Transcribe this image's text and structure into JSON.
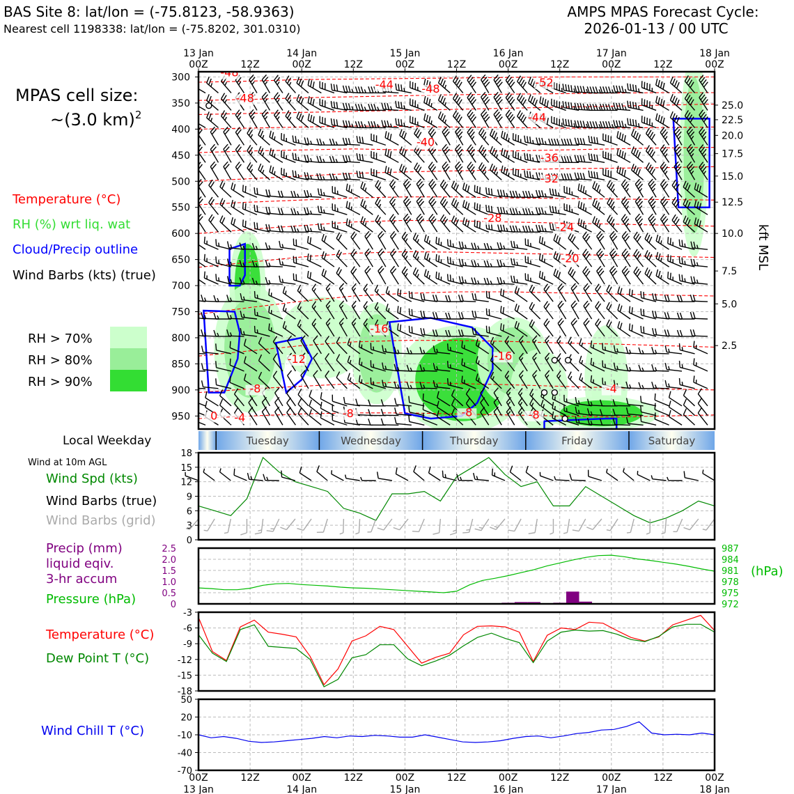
{
  "header": {
    "site_line": "BAS Site 8: lat/lon = (-75.8123, -58.9363)",
    "cell_line": "Nearest cell 1198338: lat/lon = (-75.8202, 301.0310)",
    "cycle_title": "AMPS MPAS Forecast Cycle:",
    "cycle_time": "2026-01-13 / 00 UTC"
  },
  "legend": {
    "cell_size_title": "MPAS cell size:",
    "cell_size_value": "~(3.0 km)",
    "cell_size_exp": "2",
    "temperature": "Temperature (°C)",
    "rh": "RH (%) wrt liq. wat",
    "cloud": "Cloud/Precip outline",
    "barbs": "Wind Barbs (kts) (true)",
    "rh70": "RH > 70%",
    "rh80": "RH > 80%",
    "rh90": "RH > 90%"
  },
  "colors": {
    "temperature": "#ff0000",
    "rh_label": "#33dd33",
    "cloud": "#0000ff",
    "rh70": "#ccffcc",
    "rh80": "#99ee99",
    "rh90": "#33dd33",
    "wind_speed": "#008800",
    "barbs_grid": "#aaaaaa",
    "precip": "#800080",
    "pressure": "#00bb00",
    "dewpoint": "#008800",
    "windchill": "#0000ee"
  },
  "time_axis": {
    "ticks": [
      "00Z",
      "12Z",
      "00Z",
      "12Z",
      "00Z",
      "12Z",
      "00Z",
      "12Z",
      "00Z",
      "12Z",
      "00Z"
    ],
    "dates": [
      "13 Jan",
      "14 Jan",
      "15 Jan",
      "16 Jan",
      "17 Jan",
      "18 Jan"
    ],
    "date_tick_indices": [
      0,
      2,
      4,
      6,
      8,
      10
    ]
  },
  "weekday": {
    "label": "Local Weekday",
    "days": [
      "Tuesday",
      "Wednesday",
      "Thursday",
      "Friday",
      "Saturday"
    ]
  },
  "chart_data": [
    {
      "type": "heatmap",
      "name": "profile",
      "y_ticks": [
        300,
        350,
        400,
        450,
        500,
        550,
        600,
        650,
        700,
        750,
        800,
        850,
        900,
        950
      ],
      "ylim": [
        975,
        290
      ],
      "right_axis_label": "kft MSL",
      "right_ticks": [
        {
          "label": "25.0",
          "p": 354
        },
        {
          "label": "22.5",
          "p": 382
        },
        {
          "label": "20.0",
          "p": 412
        },
        {
          "label": "17.5",
          "p": 447
        },
        {
          "label": "15.0",
          "p": 490
        },
        {
          "label": "12.5",
          "p": 540
        },
        {
          "label": "10.0",
          "p": 600
        },
        {
          "label": "7.5",
          "p": 672
        },
        {
          "label": "5.0",
          "p": 735
        },
        {
          "label": "2.5",
          "p": 815
        }
      ],
      "temp_labels": [
        {
          "t": 0.3,
          "p": 299,
          "text": "-48"
        },
        {
          "t": 0.45,
          "p": 348,
          "text": "-48"
        },
        {
          "t": 1.8,
          "p": 322,
          "text": "-44"
        },
        {
          "t": 2.25,
          "p": 330,
          "text": "-48"
        },
        {
          "t": 3.35,
          "p": 318,
          "text": "-52"
        },
        {
          "t": 3.28,
          "p": 385,
          "text": "-44"
        },
        {
          "t": 2.2,
          "p": 432,
          "text": "-40"
        },
        {
          "t": 3.4,
          "p": 462,
          "text": "-36"
        },
        {
          "t": 3.4,
          "p": 502,
          "text": "-32"
        },
        {
          "t": 2.85,
          "p": 578,
          "text": "-28"
        },
        {
          "t": 3.55,
          "p": 595,
          "text": "-24"
        },
        {
          "t": 3.6,
          "p": 655,
          "text": "-20"
        },
        {
          "t": 1.75,
          "p": 790,
          "text": "-16"
        },
        {
          "t": 2.95,
          "p": 842,
          "text": "-16"
        },
        {
          "t": 0.95,
          "p": 848,
          "text": "-12"
        },
        {
          "t": 0.55,
          "p": 905,
          "text": "-8"
        },
        {
          "t": 1.45,
          "p": 952,
          "text": "-8"
        },
        {
          "t": 2.6,
          "p": 950,
          "text": "-8"
        },
        {
          "t": 3.25,
          "p": 955,
          "text": "-8"
        },
        {
          "t": 0.15,
          "p": 957,
          "text": "0"
        },
        {
          "t": 0.4,
          "p": 960,
          "text": "-4"
        },
        {
          "t": 4.0,
          "p": 905,
          "text": "-4"
        }
      ],
      "temp_contours": [
        {
          "level": -48,
          "p": [
            310,
            308,
            305,
            304,
            303,
            302,
            301,
            300,
            300,
            300,
            300
          ]
        },
        {
          "level": -48,
          "p": [
            345,
            343,
            340,
            338,
            336,
            334,
            333,
            332,
            331,
            330,
            330
          ]
        },
        {
          "level": -44,
          "p": [
            372,
            370,
            368,
            366,
            364,
            362,
            360,
            358,
            356,
            354,
            352
          ]
        },
        {
          "level": -40,
          "p": [
            400,
            398,
            396,
            394,
            395,
            396,
            397,
            398,
            398,
            397,
            396
          ]
        },
        {
          "level": -36,
          "p": [
            445,
            442,
            440,
            438,
            440,
            441,
            442,
            440,
            438,
            436,
            435
          ]
        },
        {
          "level": -32,
          "p": [
            500,
            495,
            490,
            485,
            482,
            480,
            478,
            476,
            475,
            474,
            472
          ]
        },
        {
          "level": -28,
          "p": [
            545,
            540,
            536,
            532,
            530,
            530,
            532,
            533,
            534,
            535,
            536
          ]
        },
        {
          "level": -24,
          "p": [
            600,
            592,
            585,
            578,
            575,
            576,
            578,
            580,
            582,
            584,
            586
          ]
        },
        {
          "level": -20,
          "p": [
            665,
            655,
            645,
            638,
            635,
            636,
            638,
            640,
            642,
            644,
            646
          ]
        },
        {
          "level": -16,
          "p": [
            755,
            742,
            730,
            720,
            715,
            712,
            712,
            714,
            716,
            718,
            720
          ]
        },
        {
          "level": -12,
          "p": [
            835,
            825,
            815,
            808,
            805,
            805,
            807,
            810,
            812,
            815,
            818
          ]
        },
        {
          "level": -8,
          "p": [
            905,
            898,
            893,
            888,
            885,
            888,
            890,
            893,
            896,
            898,
            900
          ]
        },
        {
          "level": -4,
          "p": [
            955,
            950,
            946,
            944,
            944,
            946,
            948,
            950,
            952,
            950,
            948
          ]
        }
      ],
      "rh_regions": [
        {
          "t": 0.35,
          "p": 700,
          "dt": 0.25,
          "dp": 160,
          "level": 90
        },
        {
          "t": 0.25,
          "p": 820,
          "dt": 0.5,
          "dp": 190,
          "level": 80
        },
        {
          "t": 0.9,
          "p": 800,
          "dt": 0.6,
          "dp": 120,
          "level": 70
        },
        {
          "t": 1.55,
          "p": 830,
          "dt": 0.35,
          "dp": 150,
          "level": 80
        },
        {
          "t": 2.1,
          "p": 880,
          "dt": 0.9,
          "dp": 160,
          "level": 90
        },
        {
          "t": 2.8,
          "p": 845,
          "dt": 0.5,
          "dp": 130,
          "level": 80
        },
        {
          "t": 3.1,
          "p": 900,
          "dt": 0.4,
          "dp": 120,
          "level": 70
        },
        {
          "t": 3.8,
          "p": 880,
          "dt": 0.3,
          "dp": 160,
          "level": 70
        },
        {
          "t": 3.5,
          "p": 945,
          "dt": 0.8,
          "dp": 50,
          "level": 90
        },
        {
          "t": 4.7,
          "p": 450,
          "dt": 0.2,
          "dp": 300,
          "level": 80
        }
      ],
      "cloud_outlines": [
        {
          "t": [
            0.3,
            0.45,
            0.45,
            0.4,
            0.3,
            0.3
          ],
          "p": [
            630,
            620,
            680,
            700,
            700,
            630
          ]
        },
        {
          "t": [
            0.05,
            0.35,
            0.4,
            0.38,
            0.25,
            0.1,
            0.05
          ],
          "p": [
            748,
            750,
            790,
            840,
            905,
            905,
            748
          ]
        },
        {
          "t": [
            0.75,
            1.0,
            1.1,
            1.0,
            0.85,
            0.75
          ],
          "p": [
            810,
            800,
            840,
            880,
            905,
            810
          ]
        },
        {
          "t": [
            1.85,
            2.25,
            2.65,
            2.85,
            2.85,
            2.7,
            2.55,
            2.25,
            2.0,
            1.85
          ],
          "p": [
            770,
            762,
            780,
            820,
            860,
            925,
            950,
            955,
            945,
            770
          ]
        },
        {
          "t": [
            3.35,
            3.95,
            4.05,
            4.05,
            3.35,
            3.35
          ],
          "p": [
            960,
            955,
            955,
            975,
            975,
            960
          ]
        },
        {
          "t": [
            4.6,
            4.95,
            4.95,
            4.65,
            4.6
          ],
          "p": [
            380,
            380,
            550,
            550,
            380
          ]
        }
      ],
      "wind_barbs_note": "barbs on a grid of times x pressure levels; speeds in kts, directions true",
      "barb_speed_kt": [
        [
          25,
          25,
          30,
          35,
          35,
          40,
          40,
          45,
          45,
          40,
          40
        ],
        [
          20,
          25,
          25,
          30,
          30,
          35,
          35,
          40,
          40,
          35,
          35
        ],
        [
          20,
          20,
          25,
          25,
          30,
          30,
          35,
          35,
          35,
          30,
          30
        ],
        [
          15,
          15,
          20,
          20,
          25,
          25,
          25,
          30,
          30,
          25,
          25
        ],
        [
          15,
          15,
          15,
          15,
          20,
          20,
          20,
          20,
          20,
          20,
          20
        ],
        [
          10,
          10,
          10,
          15,
          15,
          15,
          15,
          15,
          15,
          15,
          15
        ],
        [
          10,
          10,
          10,
          10,
          10,
          10,
          15,
          15,
          10,
          10,
          10
        ]
      ],
      "barb_levels": [
        320,
        420,
        520,
        620,
        720,
        820,
        920
      ],
      "surface_circles": [
        {
          "t": 0.1,
          "p": 355
        },
        {
          "t": 3.45,
          "p": 843
        },
        {
          "t": 3.58,
          "p": 843
        },
        {
          "t": 3.35,
          "p": 905
        },
        {
          "t": 3.45,
          "p": 905
        },
        {
          "t": 3.55,
          "p": 955
        }
      ]
    },
    {
      "type": "line",
      "name": "wind10m",
      "title": "Wind at 10m AGL",
      "series": [
        {
          "name": "Wind Spd (kts)",
          "values": [
            7,
            6,
            5,
            8.5,
            17,
            14,
            12,
            11,
            10,
            6.5,
            5.5,
            4,
            9.5,
            9.5,
            10,
            8,
            13,
            15,
            17,
            13.5,
            11,
            12,
            7,
            7,
            11,
            9,
            7,
            5,
            3.5,
            4.5,
            6,
            8,
            7
          ]
        }
      ],
      "barbs_label": "Wind Barbs (true)",
      "barbs_grid_label": "Wind Barbs (grid)",
      "x_step_hours": 3,
      "ylim": [
        0,
        18
      ],
      "y_ticks": [
        0,
        3,
        6,
        9,
        12,
        15,
        18
      ]
    },
    {
      "type": "bar",
      "name": "precip_pressure",
      "precip_label_1": "Precip (mm)",
      "precip_label_2": "liquid eqiv.",
      "precip_label_3": "3-hr accum",
      "pressure_label": "Pressure (hPa)",
      "right_unit": "(hPa)",
      "precip_ticks": [
        "0",
        "0.5",
        "1.0",
        "1.5",
        "2.0",
        "2.5"
      ],
      "precip_ylim": [
        0,
        2.5
      ],
      "precip_bars": [
        {
          "x_hours": 72,
          "mm": 0.05
        },
        {
          "x_hours": 75,
          "mm": 0.08
        },
        {
          "x_hours": 78,
          "mm": 0.08
        },
        {
          "x_hours": 84,
          "mm": 0.05
        },
        {
          "x_hours": 87,
          "mm": 0.55
        },
        {
          "x_hours": 90,
          "mm": 0.1
        }
      ],
      "pressure_ticks": [
        "972",
        "975",
        "978",
        "981",
        "984",
        "987"
      ],
      "pressure_ylim": [
        972,
        987
      ],
      "pressure": [
        976.3,
        976.1,
        975.8,
        975.8,
        976.2,
        977.0,
        977.4,
        977.5,
        977.2,
        977.0,
        976.8,
        976.5,
        976.3,
        976.2,
        976.0,
        975.8,
        975.6,
        975.4,
        975.2,
        975.0,
        975.4,
        977.1,
        978.3,
        978.9,
        979.6,
        980.4,
        981.2,
        982.2,
        983.0,
        983.8,
        984.5,
        985.0,
        985.1,
        984.7,
        984.1,
        983.7,
        983.2,
        982.7,
        982.1,
        981.4,
        980.8
      ]
    },
    {
      "type": "line",
      "name": "temperature",
      "series": [
        {
          "name": "Temperature (°C)",
          "values": [
            -4,
            -10.5,
            -12.2,
            -5.8,
            -4.5,
            -6.8,
            -7.2,
            -7.7,
            -11.4,
            -16.8,
            -13.8,
            -8.5,
            -7.5,
            -5.7,
            -6.3,
            -9.5,
            -12.7,
            -11.6,
            -10.8,
            -7.3,
            -5.7,
            -5.6,
            -5.8,
            -6.8,
            -12.4,
            -7.4,
            -6,
            -6.3,
            -4.9,
            -5.1,
            -6.5,
            -7.8,
            -8.5,
            -7.7,
            -5.4,
            -4.5,
            -3.6,
            -6.5
          ]
        },
        {
          "name": "Dew Point T (°C)",
          "values": [
            -7.3,
            -10.8,
            -12.4,
            -6.3,
            -5.4,
            -9.5,
            -9.7,
            -9.9,
            -12,
            -17.2,
            -15.8,
            -11.7,
            -11.1,
            -9.2,
            -9.2,
            -11.9,
            -13.2,
            -12.3,
            -11.2,
            -9.4,
            -7.8,
            -7,
            -8,
            -8.8,
            -12.6,
            -8.5,
            -6.8,
            -6.4,
            -6.6,
            -6.5,
            -7.2,
            -8.2,
            -8.6,
            -7.6,
            -5.8,
            -5.3,
            -5.3,
            -6.8
          ]
        }
      ],
      "ylim": [
        -18,
        -3
      ],
      "y_ticks": [
        -18,
        -15,
        -12,
        -9,
        -6,
        -3
      ]
    },
    {
      "type": "line",
      "name": "windchill",
      "series": [
        {
          "name": "Wind Chill T (°C)",
          "values": [
            -10,
            -15,
            -13,
            -16,
            -21,
            -23,
            -22,
            -20,
            -18,
            -16,
            -13,
            -15,
            -12,
            -13,
            -11,
            -12,
            -14,
            -14,
            -10,
            -14,
            -18,
            -22,
            -23,
            -22,
            -20,
            -16,
            -13,
            -12,
            -15,
            -12,
            -8,
            -6,
            -2,
            -1,
            4,
            12,
            -7,
            -10,
            -9,
            -10,
            -7,
            -10
          ]
        }
      ],
      "ylim": [
        -70,
        50
      ],
      "y_ticks": [
        -70,
        -40,
        -10,
        20,
        50
      ]
    }
  ]
}
